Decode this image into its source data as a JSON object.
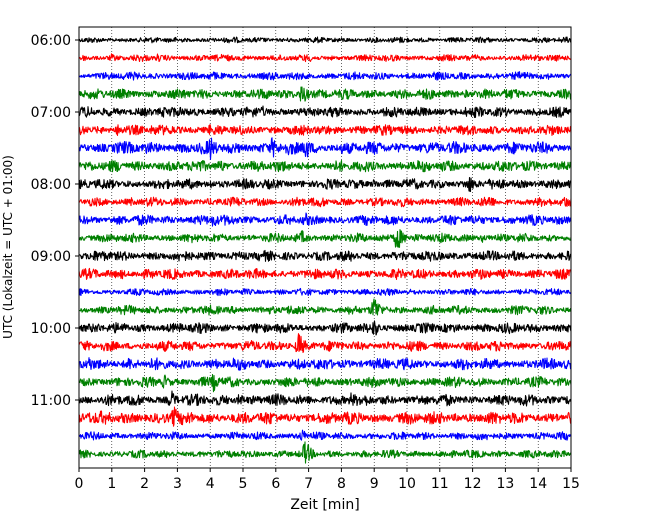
{
  "chart_data": {
    "type": "line",
    "subtype": "helicorder",
    "xlabel": "Zeit  [min]",
    "ylabel": "UTC (Lokalzeit = UTC + 01:00)",
    "xlim": [
      0,
      15
    ],
    "x_ticks": [
      "0",
      "1",
      "2",
      "3",
      "4",
      "5",
      "6",
      "7",
      "8",
      "9",
      "10",
      "11",
      "12",
      "13",
      "14",
      "15"
    ],
    "y_ticks": [
      "06:00",
      "07:00",
      "08:00",
      "09:00",
      "10:00",
      "11:00"
    ],
    "trace_interval_minutes": 15,
    "start_time": "06:00",
    "grid": "vertical dotted at each minute",
    "color_cycle": [
      "#000000",
      "#ff0000",
      "#0000ff",
      "#008000"
    ],
    "traces": [
      {
        "label": "06:00",
        "color": "#000000",
        "amplitude": 0.25,
        "events": []
      },
      {
        "label": "06:15",
        "color": "#ff0000",
        "amplitude": 0.3,
        "events": [
          {
            "t": 1.0,
            "a": 0.5
          },
          {
            "t": 2.4,
            "a": 0.5
          },
          {
            "t": 4.2,
            "a": 0.4
          }
        ]
      },
      {
        "label": "06:30",
        "color": "#0000ff",
        "amplitude": 0.35,
        "events": [
          {
            "t": 5.6,
            "a": 0.4
          },
          {
            "t": 14.3,
            "a": 0.4
          }
        ]
      },
      {
        "label": "06:45",
        "color": "#008000",
        "amplitude": 0.45,
        "events": [
          {
            "t": 6.8,
            "a": 1.3
          },
          {
            "t": 9.0,
            "a": 0.5
          },
          {
            "t": 11.8,
            "a": 0.5
          }
        ]
      },
      {
        "label": "07:00",
        "color": "#000000",
        "amplitude": 0.45,
        "events": [
          {
            "t": 3.1,
            "a": 0.7
          },
          {
            "t": 5.6,
            "a": 0.7
          },
          {
            "t": 10.4,
            "a": 0.6
          },
          {
            "t": 11.8,
            "a": 0.6
          }
        ]
      },
      {
        "label": "07:15",
        "color": "#ff0000",
        "amplitude": 0.45,
        "events": [
          {
            "t": 1.2,
            "a": 0.8
          },
          {
            "t": 2.8,
            "a": 0.7
          },
          {
            "t": 4.0,
            "a": 0.7
          }
        ]
      },
      {
        "label": "07:30",
        "color": "#0000ff",
        "amplitude": 0.55,
        "events": [
          {
            "t": 3.2,
            "a": 0.8
          },
          {
            "t": 4.0,
            "a": 1.5
          },
          {
            "t": 5.9,
            "a": 1.3
          },
          {
            "t": 6.9,
            "a": 1.5
          },
          {
            "t": 8.0,
            "a": 0.7
          }
        ]
      },
      {
        "label": "07:45",
        "color": "#008000",
        "amplitude": 0.5,
        "events": [
          {
            "t": 0.3,
            "a": 0.7
          },
          {
            "t": 4.3,
            "a": 0.9
          }
        ]
      },
      {
        "label": "08:00",
        "color": "#000000",
        "amplitude": 0.45,
        "events": [
          {
            "t": 4.0,
            "a": 0.6
          },
          {
            "t": 9.0,
            "a": 0.6
          },
          {
            "t": 11.9,
            "a": 1.1
          }
        ]
      },
      {
        "label": "08:15",
        "color": "#ff0000",
        "amplitude": 0.4,
        "events": [
          {
            "t": 1.6,
            "a": 0.5
          },
          {
            "t": 6.7,
            "a": 0.9
          },
          {
            "t": 12.5,
            "a": 0.9
          },
          {
            "t": 14.8,
            "a": 0.8
          }
        ]
      },
      {
        "label": "08:30",
        "color": "#0000ff",
        "amplitude": 0.45,
        "events": [
          {
            "t": 1.7,
            "a": 0.6
          },
          {
            "t": 4.1,
            "a": 0.9
          },
          {
            "t": 6.9,
            "a": 0.9
          }
        ]
      },
      {
        "label": "08:45",
        "color": "#008000",
        "amplitude": 0.4,
        "events": [
          {
            "t": 6.8,
            "a": 0.9
          },
          {
            "t": 9.7,
            "a": 1.6
          },
          {
            "t": 12.3,
            "a": 0.5
          }
        ]
      },
      {
        "label": "09:00",
        "color": "#000000",
        "amplitude": 0.45,
        "events": [
          {
            "t": 1.0,
            "a": 0.6
          },
          {
            "t": 7.3,
            "a": 0.5
          },
          {
            "t": 9.6,
            "a": 0.6
          }
        ]
      },
      {
        "label": "09:15",
        "color": "#ff0000",
        "amplitude": 0.45,
        "events": [
          {
            "t": 1.3,
            "a": 0.6
          },
          {
            "t": 4.0,
            "a": 0.5
          },
          {
            "t": 10.2,
            "a": 0.5
          }
        ]
      },
      {
        "label": "09:30",
        "color": "#0000ff",
        "amplitude": 0.3,
        "events": []
      },
      {
        "label": "09:45",
        "color": "#008000",
        "amplitude": 0.4,
        "events": [
          {
            "t": 9.0,
            "a": 1.7
          },
          {
            "t": 6.7,
            "a": 0.5
          }
        ]
      },
      {
        "label": "10:00",
        "color": "#000000",
        "amplitude": 0.45,
        "events": [
          {
            "t": 0.6,
            "a": 0.6
          },
          {
            "t": 9.0,
            "a": 1.1
          }
        ]
      },
      {
        "label": "10:15",
        "color": "#ff0000",
        "amplitude": 0.45,
        "events": [
          {
            "t": 6.7,
            "a": 1.6
          },
          {
            "t": 3.4,
            "a": 0.6
          },
          {
            "t": 14.9,
            "a": 0.7
          }
        ]
      },
      {
        "label": "10:30",
        "color": "#0000ff",
        "amplitude": 0.5,
        "events": [
          {
            "t": 0.3,
            "a": 1.0
          },
          {
            "t": 1.5,
            "a": 0.9
          },
          {
            "t": 3.0,
            "a": 0.6
          },
          {
            "t": 4.7,
            "a": 0.7
          }
        ]
      },
      {
        "label": "10:45",
        "color": "#008000",
        "amplitude": 0.45,
        "events": [
          {
            "t": 2.6,
            "a": 0.9
          },
          {
            "t": 4.1,
            "a": 1.1
          },
          {
            "t": 9.8,
            "a": 0.6
          }
        ]
      },
      {
        "label": "11:00",
        "color": "#000000",
        "amplitude": 0.5,
        "events": [
          {
            "t": 1.6,
            "a": 1.0
          },
          {
            "t": 2.8,
            "a": 1.2
          },
          {
            "t": 4.9,
            "a": 0.8
          },
          {
            "t": 8.3,
            "a": 0.9
          },
          {
            "t": 14.9,
            "a": 0.6
          }
        ]
      },
      {
        "label": "11:15",
        "color": "#ff0000",
        "amplitude": 0.55,
        "events": [
          {
            "t": 0.3,
            "a": 0.8
          },
          {
            "t": 2.9,
            "a": 1.4
          },
          {
            "t": 10.7,
            "a": 0.8
          },
          {
            "t": 11.5,
            "a": 0.6
          }
        ]
      },
      {
        "label": "11:30",
        "color": "#0000ff",
        "amplitude": 0.35,
        "events": [
          {
            "t": 6.8,
            "a": 0.8
          }
        ]
      },
      {
        "label": "11:45",
        "color": "#008000",
        "amplitude": 0.35,
        "events": [
          {
            "t": 6.9,
            "a": 1.6
          },
          {
            "t": 12.8,
            "a": 0.5
          }
        ]
      }
    ]
  }
}
